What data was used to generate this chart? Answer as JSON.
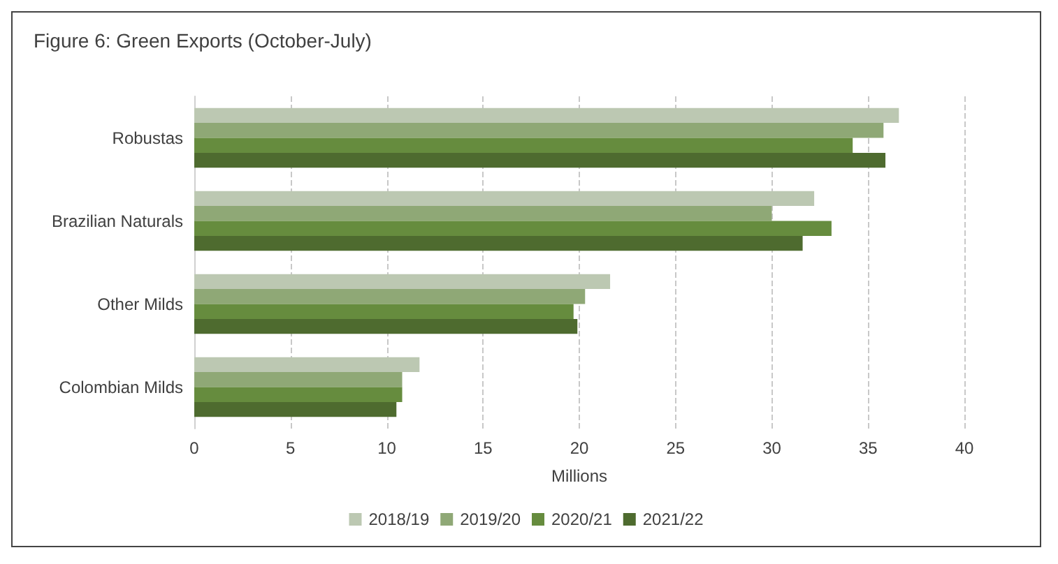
{
  "chart_data": {
    "type": "bar",
    "orientation": "horizontal",
    "title": "Figure 6: Green Exports (October-July)",
    "xlabel": "Millions",
    "categories": [
      "Robustas",
      "Brazilian Naturals",
      "Other Milds",
      "Colombian Milds"
    ],
    "series": [
      {
        "name": "2018/19",
        "color": "#bcc8b2",
        "values": [
          36.6,
          32.2,
          21.6,
          11.7
        ]
      },
      {
        "name": "2019/20",
        "color": "#8fa876",
        "values": [
          35.8,
          30.0,
          20.3,
          10.8
        ]
      },
      {
        "name": "2020/21",
        "color": "#668c3e",
        "values": [
          34.2,
          33.1,
          19.7,
          10.8
        ]
      },
      {
        "name": "2021/22",
        "color": "#4e6b2f",
        "values": [
          35.9,
          31.6,
          19.9,
          10.5
        ]
      }
    ],
    "xlim": [
      0,
      40
    ],
    "xticks": [
      0,
      5,
      10,
      15,
      20,
      25,
      30,
      35,
      40
    ],
    "grid": "x",
    "legend": "bottom"
  }
}
